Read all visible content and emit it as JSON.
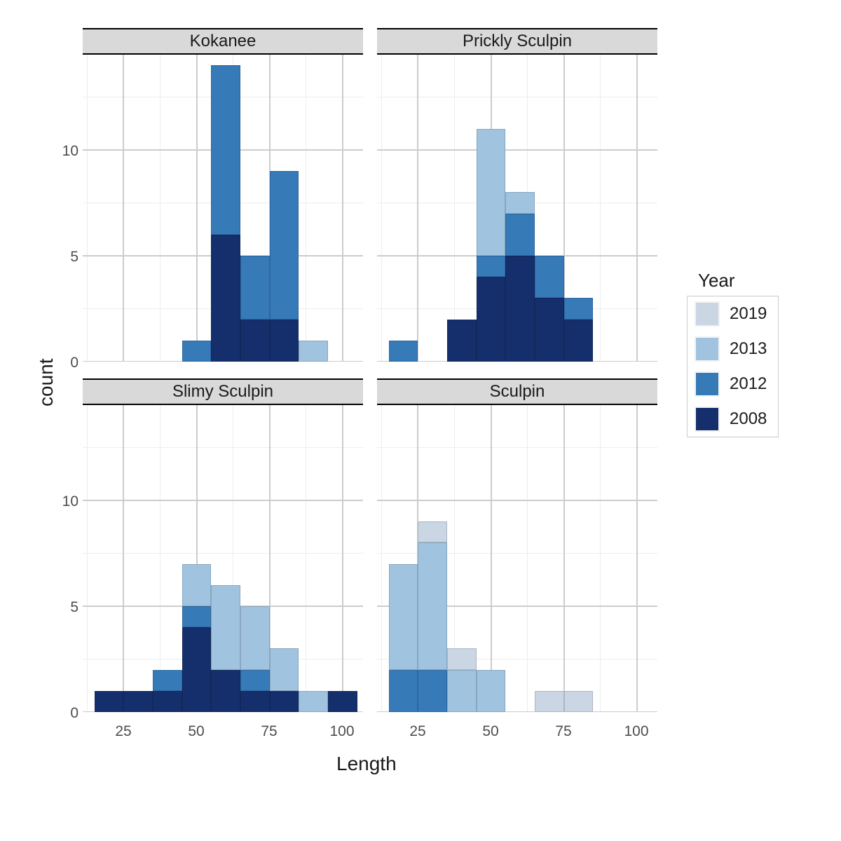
{
  "chart": {
    "type": "faceted-stacked-histogram",
    "x_label": "Length",
    "y_label": "count",
    "x_domain": [
      11,
      107
    ],
    "y_domain": [
      0,
      14.5
    ],
    "x_ticks": [
      25,
      50,
      75,
      100
    ],
    "y_ticks": [
      0,
      5,
      10
    ],
    "x_minor_step": 12.5,
    "y_minor_step": 2.5,
    "bin_width": 10,
    "bin_edges": [
      15,
      25,
      35,
      45,
      55,
      65,
      75,
      85,
      95,
      105
    ],
    "grid_color": "#cccccc",
    "grid_minor_color": "#ededed",
    "strip_bg": "#d9d9d9",
    "tick_fontsize": 21,
    "title_fontsize": 28,
    "strip_fontsize": 24,
    "background": "#ffffff",
    "legend": {
      "title": "Year",
      "items": [
        {
          "label": "2019",
          "color": "#cad6e3"
        },
        {
          "label": "2013",
          "color": "#a0c3e0"
        },
        {
          "label": "2012",
          "color": "#367ab8"
        },
        {
          "label": "2008",
          "color": "#142f6b"
        }
      ]
    },
    "facets": [
      {
        "title": "Kokanee",
        "row": 0,
        "col": 0,
        "bars": [
          {
            "bin": 45,
            "stack": [
              {
                "year": "2012",
                "h": 1
              }
            ]
          },
          {
            "bin": 55,
            "stack": [
              {
                "year": "2008",
                "h": 6
              },
              {
                "year": "2012",
                "h": 8
              }
            ]
          },
          {
            "bin": 65,
            "stack": [
              {
                "year": "2008",
                "h": 2
              },
              {
                "year": "2012",
                "h": 3
              }
            ]
          },
          {
            "bin": 75,
            "stack": [
              {
                "year": "2008",
                "h": 2
              },
              {
                "year": "2012",
                "h": 7
              }
            ]
          },
          {
            "bin": 85,
            "stack": [
              {
                "year": "2013",
                "h": 1
              }
            ]
          }
        ]
      },
      {
        "title": "Prickly Sculpin",
        "row": 0,
        "col": 1,
        "bars": [
          {
            "bin": 15,
            "stack": [
              {
                "year": "2012",
                "h": 1
              }
            ]
          },
          {
            "bin": 35,
            "stack": [
              {
                "year": "2008",
                "h": 2
              }
            ]
          },
          {
            "bin": 45,
            "stack": [
              {
                "year": "2008",
                "h": 4
              },
              {
                "year": "2012",
                "h": 1
              },
              {
                "year": "2013",
                "h": 6
              }
            ]
          },
          {
            "bin": 55,
            "stack": [
              {
                "year": "2008",
                "h": 5
              },
              {
                "year": "2012",
                "h": 2
              },
              {
                "year": "2013",
                "h": 1
              }
            ]
          },
          {
            "bin": 65,
            "stack": [
              {
                "year": "2008",
                "h": 3
              },
              {
                "year": "2012",
                "h": 2
              }
            ]
          },
          {
            "bin": 75,
            "stack": [
              {
                "year": "2008",
                "h": 2
              },
              {
                "year": "2012",
                "h": 1
              }
            ]
          }
        ]
      },
      {
        "title": "Slimy Sculpin",
        "row": 1,
        "col": 0,
        "bars": [
          {
            "bin": 15,
            "stack": [
              {
                "year": "2008",
                "h": 1
              }
            ]
          },
          {
            "bin": 25,
            "stack": [
              {
                "year": "2008",
                "h": 1
              }
            ]
          },
          {
            "bin": 35,
            "stack": [
              {
                "year": "2008",
                "h": 1
              },
              {
                "year": "2012",
                "h": 1
              }
            ]
          },
          {
            "bin": 45,
            "stack": [
              {
                "year": "2008",
                "h": 4
              },
              {
                "year": "2012",
                "h": 1
              },
              {
                "year": "2013",
                "h": 2
              }
            ]
          },
          {
            "bin": 55,
            "stack": [
              {
                "year": "2008",
                "h": 2
              },
              {
                "year": "2013",
                "h": 4
              }
            ]
          },
          {
            "bin": 65,
            "stack": [
              {
                "year": "2008",
                "h": 1
              },
              {
                "year": "2012",
                "h": 1
              },
              {
                "year": "2013",
                "h": 3
              }
            ]
          },
          {
            "bin": 75,
            "stack": [
              {
                "year": "2008",
                "h": 1
              },
              {
                "year": "2013",
                "h": 2
              }
            ]
          },
          {
            "bin": 85,
            "stack": [
              {
                "year": "2013",
                "h": 1
              }
            ]
          },
          {
            "bin": 95,
            "stack": [
              {
                "year": "2008",
                "h": 1
              }
            ]
          }
        ]
      },
      {
        "title": "Sculpin",
        "row": 1,
        "col": 1,
        "bars": [
          {
            "bin": 15,
            "stack": [
              {
                "year": "2012",
                "h": 2
              },
              {
                "year": "2013",
                "h": 5
              }
            ]
          },
          {
            "bin": 25,
            "stack": [
              {
                "year": "2012",
                "h": 2
              },
              {
                "year": "2013",
                "h": 6
              },
              {
                "year": "2019",
                "h": 1
              }
            ]
          },
          {
            "bin": 35,
            "stack": [
              {
                "year": "2013",
                "h": 2
              },
              {
                "year": "2019",
                "h": 1
              }
            ]
          },
          {
            "bin": 45,
            "stack": [
              {
                "year": "2013",
                "h": 2
              }
            ]
          },
          {
            "bin": 65,
            "stack": [
              {
                "year": "2019",
                "h": 1
              }
            ]
          },
          {
            "bin": 75,
            "stack": [
              {
                "year": "2019",
                "h": 1
              }
            ]
          }
        ]
      }
    ]
  }
}
